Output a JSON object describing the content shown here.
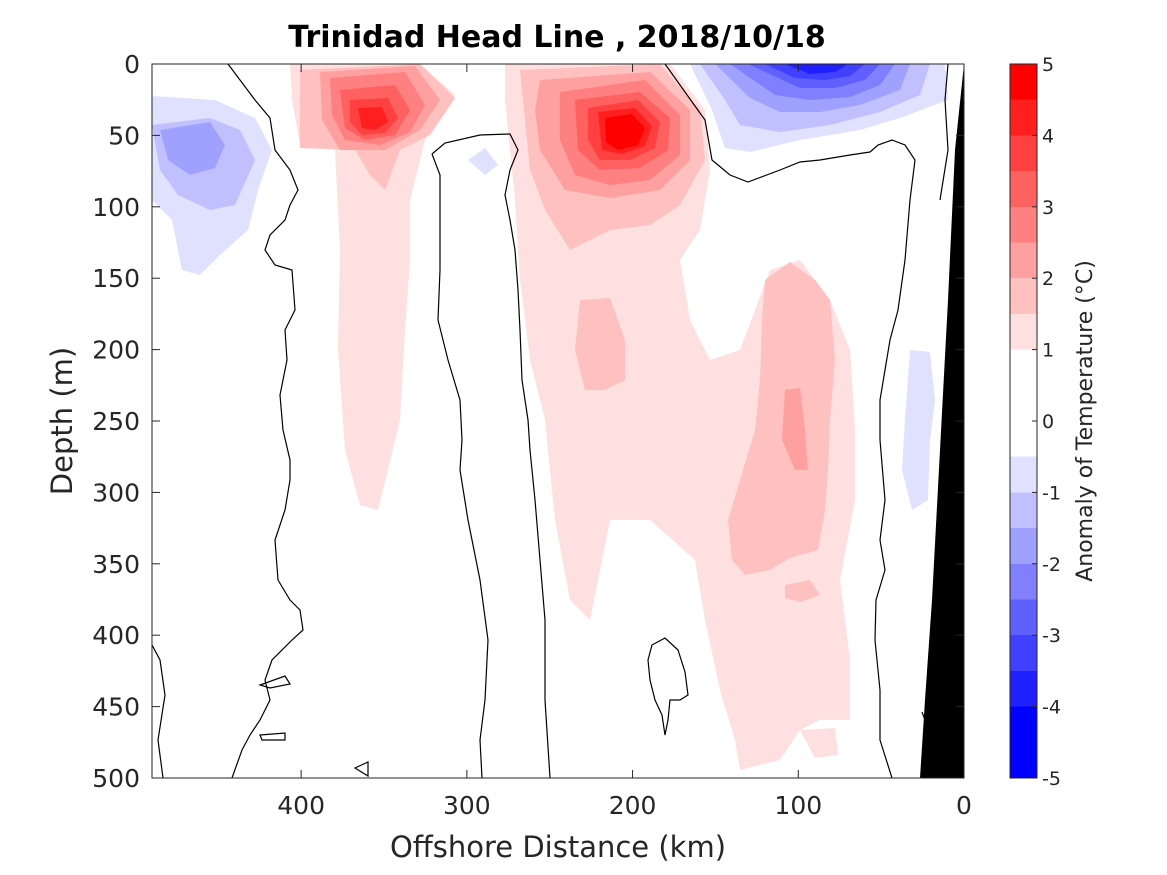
{
  "chart_data": {
    "type": "heatmap",
    "title": "Trinidad Head Line , 2018/10/18",
    "xlabel": "Offshore Distance (km)",
    "ylabel": "Depth (m)",
    "xlim": [
      490,
      0
    ],
    "ylim": [
      500,
      0
    ],
    "xticks": [
      400,
      300,
      200,
      100,
      0
    ],
    "yticks": [
      0,
      50,
      100,
      150,
      200,
      250,
      300,
      350,
      400,
      450,
      500
    ],
    "colorbar": {
      "label": "Anomaly of Temperature (°C)",
      "ticks": [
        5,
        4,
        3,
        2,
        1,
        0,
        -1,
        -2,
        -3,
        -4,
        -5
      ],
      "range": [
        -5,
        5
      ],
      "colors": [
        "#0000ff",
        "#1f1fff",
        "#4040ff",
        "#6060ff",
        "#8080ff",
        "#a0a0ff",
        "#c0c0ff",
        "#e0e0ff",
        "#ffffff",
        "#ffffff",
        "#ffe0e0",
        "#ffc0c0",
        "#ffa0a0",
        "#ff8080",
        "#ff6060",
        "#ff4040",
        "#ff1f1f",
        "#ff0000"
      ]
    },
    "features": [
      {
        "name": "warm core",
        "x": 200,
        "depth": 50,
        "anomaly": 5
      },
      {
        "name": "warm core",
        "x": 360,
        "depth": 40,
        "anomaly": 4
      },
      {
        "name": "cold core",
        "x": 90,
        "depth": 5,
        "anomaly": -4
      },
      {
        "name": "cold patch",
        "x": 460,
        "depth": 60,
        "anomaly": -1.5
      },
      {
        "name": "warm tongue",
        "x": 100,
        "depth": 250,
        "anomaly": 1.5
      },
      {
        "name": "warm tongue",
        "x": 240,
        "depth": 200,
        "anomaly": 1.2
      }
    ],
    "bathymetry": {
      "color": "#000000"
    }
  }
}
